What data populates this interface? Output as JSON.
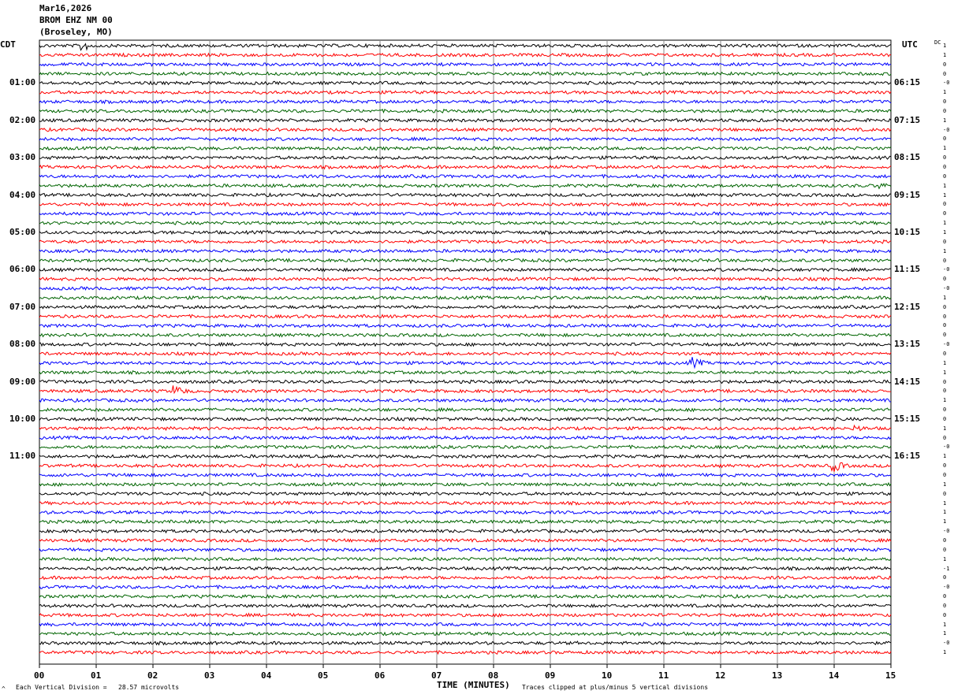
{
  "header": {
    "date": "Mar16,2026",
    "station": "BROM EHZ NM 00",
    "location": "(Broseley, MO)"
  },
  "left_timezone": "CDT",
  "right_timezone": "UTC",
  "dc_label": "DC",
  "footer": {
    "scale_note": "Each Vertical Division =   28.57 microvolts",
    "clip_note": "Traces clipped at plus/minus 5 vertical divisions",
    "corner_mark": "^"
  },
  "colors": [
    "#000000",
    "#ff0000",
    "#0000ff",
    "#006400"
  ],
  "chart_data": {
    "type": "line",
    "title": "Mar16,2026 BROM EHZ NM 00 (Broseley, MO)",
    "xlabel": "TIME (MINUTES)",
    "x_ticks": [
      "00",
      "01",
      "02",
      "03",
      "04",
      "05",
      "06",
      "07",
      "08",
      "09",
      "10",
      "11",
      "12",
      "13",
      "14",
      "15"
    ],
    "xlim": [
      0,
      15
    ],
    "traces_per_hour": 4,
    "minutes_per_trace": 15,
    "left_time_labels": [
      "01:00",
      "02:00",
      "03:00",
      "04:00",
      "05:00",
      "06:00",
      "07:00",
      "08:00",
      "09:00",
      "10:00",
      "11:00"
    ],
    "right_time_labels": [
      "06:15",
      "07:15",
      "08:15",
      "09:15",
      "10:15",
      "11:15",
      "12:15",
      "13:15",
      "14:15",
      "15:15",
      "16:15"
    ],
    "dc_offsets": [
      "1",
      "1",
      "0",
      "0",
      "-0",
      "1",
      "0",
      "0",
      "1",
      "-0",
      "0",
      "1",
      "0",
      "0",
      "0",
      "1",
      "1",
      "0",
      "0",
      "1",
      "1",
      "0",
      "1",
      "0",
      "-0",
      "0",
      "-0",
      "1",
      "0",
      "0",
      "0",
      "0",
      "-0",
      "0",
      "1",
      "1",
      "0",
      "0",
      "1",
      "0",
      "0",
      "1",
      "0",
      "-0",
      "1",
      "0",
      "0",
      "1",
      "0",
      "1",
      "1",
      "1",
      "-0",
      "0",
      "0",
      "1",
      "-1",
      "0",
      "-0",
      "0",
      "0",
      "0",
      "1",
      "1",
      "-0",
      "1"
    ],
    "events": [
      {
        "trace": 0,
        "minute": 0.75,
        "amplitude": "large"
      },
      {
        "trace": 34,
        "minute": 11.5,
        "amplitude": "large"
      },
      {
        "trace": 37,
        "minute": 2.4,
        "amplitude": "large"
      },
      {
        "trace": 41,
        "minute": 14.4,
        "amplitude": "medium"
      },
      {
        "trace": 45,
        "minute": 14.0,
        "amplitude": "large"
      },
      {
        "trace": 15,
        "minute": 14.8,
        "amplitude": "medium"
      }
    ],
    "grid": true
  }
}
